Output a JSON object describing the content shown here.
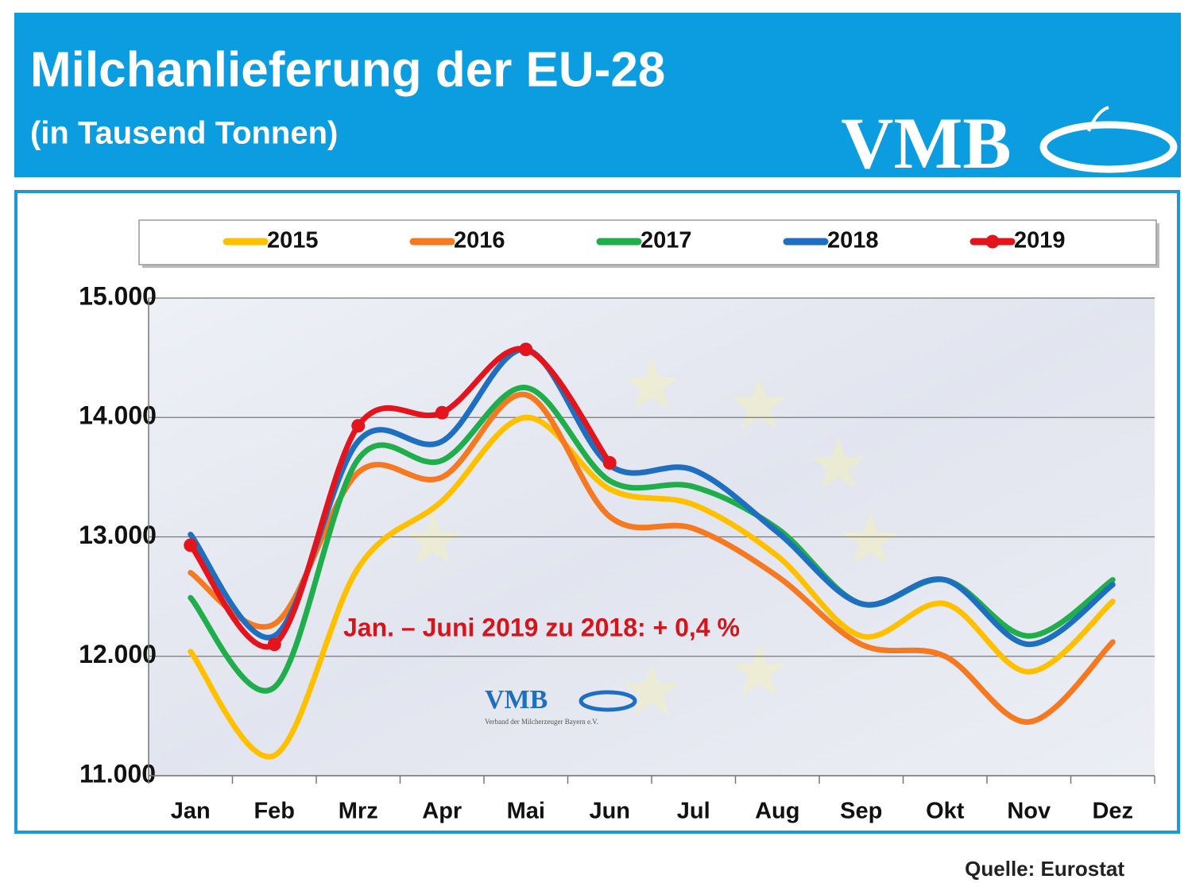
{
  "chart_data": {
    "type": "line",
    "title": "Milchanlieferung der EU-28",
    "subtitle": "(in Tausend Tonnen)",
    "logo": {
      "text": "VMB",
      "tagline": "Verband der Milcherzeuger Bayern e.V."
    },
    "annotation": "Jan. – Juni  2019 zu 2018: + 0,4 %",
    "source": "Quelle: Eurostat",
    "categories": [
      "Jan",
      "Feb",
      "Mrz",
      "Apr",
      "Mai",
      "Jun",
      "Jul",
      "Aug",
      "Sep",
      "Okt",
      "Nov",
      "Dez"
    ],
    "series": [
      {
        "name": "2015",
        "color": "#ffc000",
        "values": [
          12040,
          11170,
          12740,
          13300,
          14000,
          13400,
          13270,
          12840,
          12170,
          12440,
          11870,
          12460
        ]
      },
      {
        "name": "2016",
        "color": "#f47920",
        "values": [
          12700,
          12270,
          13540,
          13500,
          14190,
          13170,
          13070,
          12670,
          12100,
          12000,
          11450,
          12120
        ]
      },
      {
        "name": "2017",
        "color": "#1fae4b",
        "values": [
          12490,
          11740,
          13650,
          13640,
          14250,
          13470,
          13420,
          13070,
          12440,
          12640,
          12170,
          12640
        ]
      },
      {
        "name": "2018",
        "color": "#1f6fc0",
        "values": [
          13020,
          12170,
          13800,
          13800,
          14570,
          13600,
          13560,
          13040,
          12440,
          12640,
          12100,
          12600
        ]
      },
      {
        "name": "2019",
        "color": "#e3141b",
        "values": [
          12930,
          12100,
          13930,
          14040,
          14570,
          13620,
          null,
          null,
          null,
          null,
          null,
          null
        ],
        "markers": true
      }
    ],
    "ylim": [
      11000,
      15000
    ],
    "yticks": [
      {
        "value": 11000,
        "label": "11.000"
      },
      {
        "value": 12000,
        "label": "12.000"
      },
      {
        "value": 13000,
        "label": "13.000"
      },
      {
        "value": 14000,
        "label": "14.000"
      },
      {
        "value": 15000,
        "label": "15.000"
      }
    ],
    "grid": true,
    "legend": "top"
  }
}
